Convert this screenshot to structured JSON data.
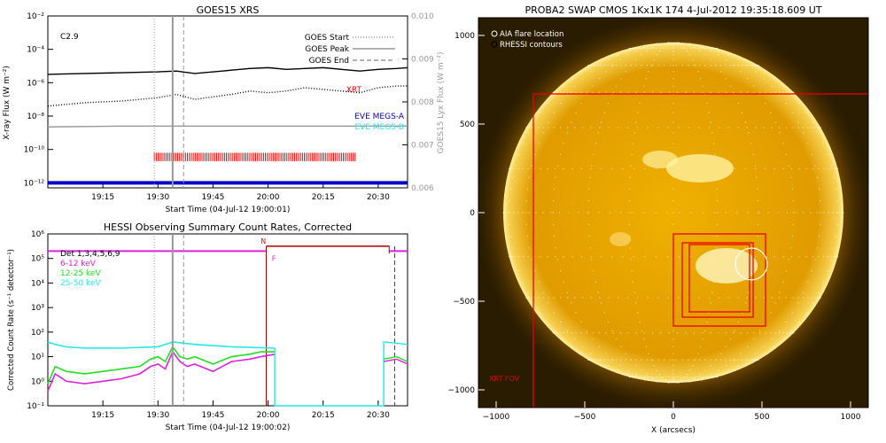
{
  "colors": {
    "red": "#ee0000",
    "magenta": "#dd22dd",
    "green": "#22dd22",
    "cyan": "#22e8e8",
    "blue": "#0000cc",
    "gray": "#999999",
    "sun": "#e8a800"
  },
  "chart_data": [
    {
      "type": "line",
      "title": "GOES15 XRS",
      "xlabel": "Start Time (04-Jul-12 19:00:01)",
      "ylabel": "X-ray Flux (W m⁻²)",
      "ylabel_right": "GOES15 Lyx Flux (W m⁻²)",
      "annotation": "C2.9",
      "x_ticks": [
        "19:15",
        "19:30",
        "19:45",
        "20:00",
        "20:15",
        "20:30"
      ],
      "x_tick_minutes": [
        15,
        30,
        45,
        60,
        75,
        90
      ],
      "xlim_minutes": [
        0,
        98
      ],
      "y_ticks": [
        "10⁻²",
        "10⁻⁴",
        "10⁻⁶",
        "10⁻⁸",
        "10⁻¹⁰",
        "10⁻¹²"
      ],
      "y_tick_exponents": [
        -2,
        -4,
        -6,
        -8,
        -10,
        -12
      ],
      "ylim_exponent": [
        -12.3,
        -2
      ],
      "y2_ticks": [
        "0.010",
        "0.009",
        "0.008",
        "0.007",
        "0.006"
      ],
      "y2_values": [
        0.01,
        0.009,
        0.008,
        0.007,
        0.006
      ],
      "y2lim": [
        0.006,
        0.01
      ],
      "legend": [
        {
          "label": "GOES Start",
          "style": "dotted"
        },
        {
          "label": "GOES Peak",
          "style": "solid"
        },
        {
          "label": "GOES End",
          "style": "dashed"
        }
      ],
      "labels_right": [
        {
          "label": "XRT",
          "color": "#ee0000"
        },
        {
          "label": "EVE MEGS-A",
          "color": "#0000cc"
        },
        {
          "label": "EVE MEGS-B",
          "color": "#22e8e8"
        }
      ],
      "vlines_minutes": {
        "start": 29,
        "peak": 34,
        "end": 37
      },
      "series": [
        {
          "style": "solid",
          "color": "#000000",
          "x": [
            0,
            10,
            20,
            30,
            35,
            40,
            50,
            55,
            60,
            65,
            70,
            75,
            80,
            85,
            90,
            95,
            98
          ],
          "log_values": [
            -5.5,
            -5.45,
            -5.4,
            -5.35,
            -5.3,
            -5.45,
            -5.25,
            -5.15,
            -5.1,
            -5.2,
            -5.15,
            -5.1,
            -5.2,
            -5.3,
            -5.2,
            -5.15,
            -5.1
          ]
        },
        {
          "style": "dotted",
          "color": "#000000",
          "x": [
            0,
            10,
            20,
            30,
            35,
            40,
            50,
            55,
            60,
            65,
            70,
            75,
            80,
            85,
            90,
            95,
            98
          ],
          "log_values": [
            -7.4,
            -7.2,
            -7.1,
            -6.9,
            -6.7,
            -7.0,
            -6.7,
            -6.5,
            -6.6,
            -6.5,
            -6.3,
            -6.4,
            -6.5,
            -6.6,
            -6.3,
            -6.2,
            -6.2
          ]
        },
        {
          "style": "solid",
          "color": "#999999",
          "x": [
            0,
            20,
            40,
            60,
            80,
            98
          ],
          "log_values": [
            -8.65,
            -8.6,
            -8.6,
            -8.6,
            -8.6,
            -8.6
          ]
        },
        {
          "style": "solid",
          "color": "#0000cc",
          "x": [
            0,
            98
          ],
          "log_values": [
            -12.0,
            -12.0
          ]
        }
      ],
      "xrt_band": {
        "color": "#ee0000",
        "x_range": [
          29,
          84
        ],
        "log_range": [
          -10.2,
          -10.7
        ]
      }
    },
    {
      "type": "line",
      "title": "HESSI Observing Summary Count Rates, Corrected",
      "xlabel": "Start Time (04-Jul-12 19:00:02)",
      "ylabel": "Corrected Count Rate (s⁻¹ detector⁻¹)",
      "x_ticks": [
        "19:15",
        "19:30",
        "19:45",
        "20:00",
        "20:15",
        "20:30"
      ],
      "x_tick_minutes": [
        15,
        30,
        45,
        60,
        75,
        90
      ],
      "xlim_minutes": [
        0,
        98
      ],
      "y_ticks": [
        "10⁶",
        "10⁵",
        "10⁴",
        "10³",
        "10²",
        "10¹",
        "10⁰",
        "10⁻¹"
      ],
      "y_tick_exponents": [
        6,
        5,
        4,
        3,
        2,
        1,
        0,
        -1
      ],
      "ylim_exponent": [
        -1,
        6
      ],
      "legend": [
        {
          "label": "Det 1,3,4,5,6,9",
          "color": "#000000"
        },
        {
          "label": "6-12 keV",
          "color": "#dd22dd"
        },
        {
          "label": "12-25 keV",
          "color": "#22dd22"
        },
        {
          "label": "25-50 keV",
          "color": "#22e8e8"
        }
      ],
      "markers": [
        {
          "label": "N",
          "color": "#ee0000"
        },
        {
          "label": "F",
          "color": "#dd22dd"
        }
      ],
      "vlines_minutes": {
        "start": 29,
        "peak": 34,
        "end": 37
      },
      "series": [
        {
          "name": "6-12 keV",
          "color": "#dd22dd",
          "x": [
            0,
            2,
            5,
            10,
            15,
            20,
            25,
            28,
            30,
            32,
            34,
            36,
            38,
            40,
            45,
            50,
            55,
            58,
            61.8
          ],
          "log_values": [
            -0.4,
            0.3,
            0,
            -0.1,
            0,
            0.1,
            0.3,
            0.6,
            0.7,
            0.5,
            1.2,
            0.8,
            0.6,
            0.7,
            0.4,
            0.8,
            0.9,
            1.0,
            1.1
          ]
        },
        {
          "name": "12-25 keV",
          "color": "#22dd22",
          "x": [
            0,
            2,
            5,
            10,
            15,
            20,
            25,
            28,
            30,
            32,
            34,
            36,
            38,
            40,
            45,
            50,
            55,
            58,
            61.8
          ],
          "log_values": [
            -0.1,
            0.6,
            0.4,
            0.3,
            0.4,
            0.5,
            0.6,
            0.9,
            1.0,
            0.8,
            1.4,
            1.0,
            0.9,
            1.0,
            0.7,
            1.0,
            1.1,
            1.2,
            1.2
          ]
        },
        {
          "name": "25-50 keV",
          "color": "#22e8e8",
          "x": [
            0,
            2,
            5,
            10,
            20,
            30,
            34,
            40,
            50,
            61.8
          ],
          "log_values": [
            1.6,
            1.5,
            1.4,
            1.35,
            1.35,
            1.4,
            1.6,
            1.5,
            1.4,
            1.35
          ]
        }
      ]
    },
    {
      "type": "heatmap",
      "title": "PROBA2 SWAP CMOS 1Kx1K 174   4-Jul-2012 19:35:18.609 UT",
      "xlabel": "X (arcsecs)",
      "x_ticks": [
        "−1000",
        "−500",
        "0",
        "500",
        "1000"
      ],
      "x_values": [
        -1000,
        -500,
        0,
        500,
        1000
      ],
      "y_ticks": [
        "1000",
        "500",
        "0",
        "−500",
        "−1000"
      ],
      "y_values": [
        1000,
        500,
        0,
        -500,
        -1000
      ],
      "xlim": [
        -1100,
        1100
      ],
      "ylim": [
        -1100,
        1100
      ],
      "legend": [
        {
          "label": "AIA flare location",
          "color": "#ffffff"
        },
        {
          "label": "RHESSI contours",
          "color": "#000000"
        }
      ],
      "annotation": "XRT FOV",
      "solar_radius_arcsec": 960,
      "rectangles": [
        {
          "x": [
            -790,
            1110
          ],
          "y": [
            -1100,
            670
          ]
        },
        {
          "x": [
            0,
            520
          ],
          "y": [
            -640,
            -120
          ]
        },
        {
          "x": [
            50,
            450
          ],
          "y": [
            -590,
            -170
          ]
        },
        {
          "x": [
            90,
            430
          ],
          "y": [
            -560,
            -180
          ]
        }
      ],
      "flare_circle": {
        "x": 440,
        "y": -290,
        "r": 90
      }
    }
  ]
}
